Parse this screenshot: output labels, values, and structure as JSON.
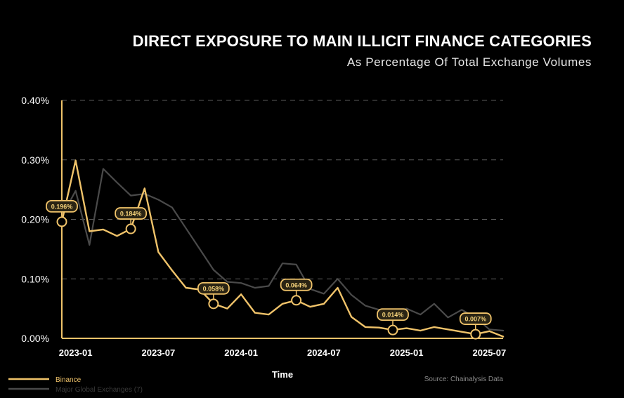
{
  "chart_data": {
    "type": "line",
    "title": "DIRECT EXPOSURE TO MAIN ILLICIT FINANCE CATEGORIES",
    "subtitle": "As Percentage Of Total Exchange Volumes",
    "xlabel": "Time",
    "ylabel": "",
    "ylim": [
      0,
      0.4
    ],
    "y_ticks": [
      {
        "value": 0.0,
        "label": "0.00%"
      },
      {
        "value": 0.1,
        "label": "0.10%"
      },
      {
        "value": 0.2,
        "label": "0.20%"
      },
      {
        "value": 0.3,
        "label": "0.30%"
      },
      {
        "value": 0.4,
        "label": "0.40%"
      }
    ],
    "x_ticks": [
      {
        "index": 1,
        "label": "2023-01"
      },
      {
        "index": 7,
        "label": "2023-07"
      },
      {
        "index": 13,
        "label": "2024-01"
      },
      {
        "index": 19,
        "label": "2024-07"
      },
      {
        "index": 25,
        "label": "2025-01"
      },
      {
        "index": 31,
        "label": "2025-07"
      }
    ],
    "grid": "horizontal-dashed",
    "source": "Source: Chainalysis Data",
    "series": [
      {
        "name": "Binance",
        "color": "#f0c36a",
        "values": [
          0.196,
          0.299,
          0.18,
          0.183,
          0.172,
          0.184,
          0.252,
          0.145,
          0.114,
          0.085,
          0.082,
          0.058,
          0.05,
          0.074,
          0.043,
          0.04,
          0.058,
          0.064,
          0.053,
          0.058,
          0.085,
          0.036,
          0.019,
          0.018,
          0.014,
          0.017,
          0.013,
          0.019,
          0.015,
          0.011,
          0.007,
          0.012,
          0.003
        ]
      },
      {
        "name": "Major Global Exchanges (7)",
        "color": "#4a4a4a",
        "values": [
          0.205,
          0.248,
          0.157,
          0.285,
          0.262,
          0.24,
          0.243,
          0.233,
          0.22,
          0.185,
          0.15,
          0.115,
          0.095,
          0.093,
          0.085,
          0.088,
          0.126,
          0.124,
          0.083,
          0.075,
          0.1,
          0.073,
          0.055,
          0.048,
          0.04,
          0.05,
          0.04,
          0.058,
          0.035,
          0.048,
          0.035,
          0.015,
          0.013
        ]
      }
    ],
    "annotations": [
      {
        "series": "Binance",
        "index": 0,
        "label": "0.196%"
      },
      {
        "series": "Binance",
        "index": 5,
        "label": "0.184%"
      },
      {
        "series": "Binance",
        "index": 11,
        "label": "0.058%"
      },
      {
        "series": "Binance",
        "index": 17,
        "label": "0.064%"
      },
      {
        "series": "Binance",
        "index": 24,
        "label": "0.014%"
      },
      {
        "series": "Binance",
        "index": 30,
        "label": "0.007%"
      }
    ]
  }
}
